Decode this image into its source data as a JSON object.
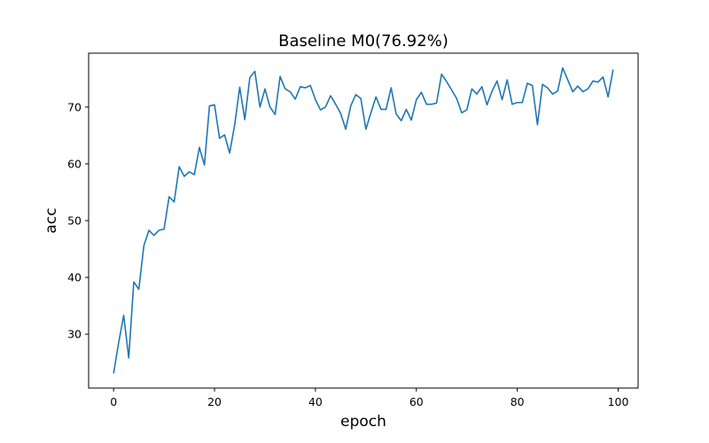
{
  "chart_data": {
    "type": "line",
    "title": "Baseline M0(76.92%)",
    "xlabel": "epoch",
    "ylabel": "acc",
    "xlim": [
      -4.95,
      103.95
    ],
    "ylim": [
      20.5,
      79.5
    ],
    "xticks": [
      0,
      20,
      40,
      60,
      80,
      100
    ],
    "yticks": [
      30,
      40,
      50,
      60,
      70
    ],
    "grid": false,
    "series": [
      {
        "color": "#1f77b4",
        "x": [
          0,
          1,
          2,
          3,
          4,
          5,
          6,
          7,
          8,
          9,
          10,
          11,
          12,
          13,
          14,
          15,
          16,
          17,
          18,
          19,
          20,
          21,
          22,
          23,
          24,
          25,
          26,
          27,
          28,
          29,
          30,
          31,
          32,
          33,
          34,
          35,
          36,
          37,
          38,
          39,
          40,
          41,
          42,
          43,
          44,
          45,
          46,
          47,
          48,
          49,
          50,
          51,
          52,
          53,
          54,
          55,
          56,
          57,
          58,
          59,
          60,
          61,
          62,
          63,
          64,
          65,
          66,
          67,
          68,
          69,
          70,
          71,
          72,
          73,
          74,
          75,
          76,
          77,
          78,
          79,
          80,
          81,
          82,
          83,
          84,
          85,
          86,
          87,
          88,
          89,
          90,
          91,
          92,
          93,
          94,
          95,
          96,
          97,
          98,
          99
        ],
        "values": [
          23.1,
          28.5,
          33.3,
          25.8,
          39.2,
          37.9,
          45.6,
          48.3,
          47.4,
          48.3,
          48.5,
          54.2,
          53.3,
          59.5,
          57.8,
          58.6,
          58.1,
          62.9,
          59.8,
          70.2,
          70.4,
          64.5,
          65.1,
          61.9,
          66.9,
          73.5,
          67.8,
          75.2,
          76.3,
          70.0,
          73.2,
          70.0,
          68.7,
          75.4,
          73.2,
          72.7,
          71.4,
          73.6,
          73.4,
          73.8,
          71.3,
          69.5,
          70.0,
          72.0,
          70.5,
          68.9,
          66.1,
          70.2,
          72.2,
          71.5,
          66.1,
          69.0,
          71.8,
          69.6,
          69.6,
          73.4,
          68.8,
          67.6,
          69.6,
          67.7,
          71.3,
          72.6,
          70.5,
          70.5,
          70.7,
          75.8,
          74.5,
          73.0,
          71.5,
          69.0,
          69.5,
          73.2,
          72.3,
          73.6,
          70.4,
          72.8,
          74.6,
          71.3,
          74.8,
          70.5,
          70.8,
          70.8,
          74.2,
          73.8,
          66.9,
          74.0,
          73.4,
          72.3,
          72.8,
          76.9,
          74.8,
          72.7,
          73.7,
          72.7,
          73.2,
          74.6,
          74.4,
          75.3,
          71.8,
          76.6
        ]
      }
    ]
  }
}
